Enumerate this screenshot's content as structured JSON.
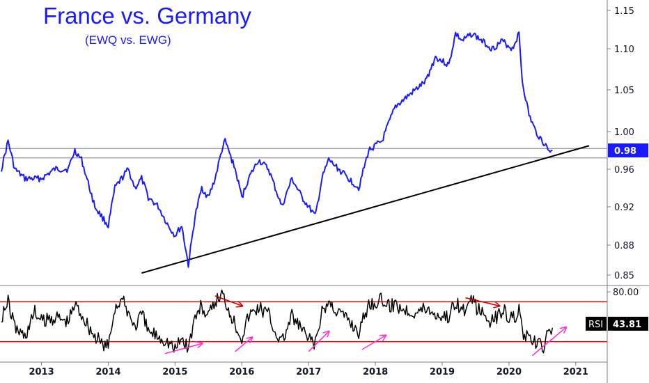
{
  "chart_data": [
    {
      "type": "line",
      "title": "France vs. Germany",
      "subtitle": "(EWQ vs. EWG)",
      "x_ticks": [
        "2013",
        "2014",
        "2015",
        "2016",
        "2017",
        "2018",
        "2019",
        "2020",
        "2021"
      ],
      "y_ticks": [
        "1.15",
        "1.10",
        "1.05",
        "1.00",
        "0.96",
        "0.92",
        "0.88",
        "0.85"
      ],
      "ylim": [
        0.84,
        1.16
      ],
      "last_value_label": "0.98",
      "series": [
        {
          "color": "#1a1aff",
          "x": [
            2012.4,
            2012.5,
            2012.6,
            2012.75,
            2012.9,
            2013.0,
            2013.2,
            2013.4,
            2013.5,
            2013.6,
            2013.8,
            2013.9,
            2014.0,
            2014.1,
            2014.2,
            2014.3,
            2014.4,
            2014.5,
            2014.6,
            2014.75,
            2014.9,
            2015.0,
            2015.1,
            2015.2,
            2015.3,
            2015.4,
            2015.5,
            2015.6,
            2015.7,
            2015.75,
            2015.9,
            2016.0,
            2016.1,
            2016.25,
            2016.4,
            2016.5,
            2016.6,
            2016.75,
            2016.9,
            2017.0,
            2017.1,
            2017.2,
            2017.3,
            2017.45,
            2017.6,
            2017.75,
            2017.9,
            2018.1,
            2018.2,
            2018.3,
            2018.45,
            2018.6,
            2018.75,
            2018.9,
            2019.1,
            2019.2,
            2019.3,
            2019.45,
            2019.6,
            2019.75,
            2019.9,
            2020.05,
            2020.15,
            2020.2,
            2020.3,
            2020.4,
            2020.5,
            2020.6,
            2020.65
          ],
          "y": [
            0.96,
            0.99,
            0.96,
            0.95,
            0.95,
            0.95,
            0.96,
            0.96,
            0.98,
            0.97,
            0.92,
            0.91,
            0.9,
            0.94,
            0.95,
            0.96,
            0.94,
            0.95,
            0.93,
            0.92,
            0.9,
            0.89,
            0.9,
            0.86,
            0.91,
            0.94,
            0.93,
            0.95,
            0.98,
            0.99,
            0.96,
            0.93,
            0.95,
            0.97,
            0.96,
            0.94,
            0.92,
            0.95,
            0.93,
            0.92,
            0.91,
            0.95,
            0.97,
            0.96,
            0.95,
            0.94,
            0.98,
            0.99,
            1.01,
            1.03,
            1.04,
            1.05,
            1.06,
            1.09,
            1.08,
            1.12,
            1.11,
            1.12,
            1.11,
            1.1,
            1.11,
            1.1,
            1.12,
            1.06,
            1.02,
            1.0,
            0.99,
            0.98,
            0.98
          ]
        }
      ],
      "reference_lines": [
        {
          "y": 0.982
        },
        {
          "y": 0.972
        }
      ],
      "trendline": {
        "x": [
          2014.5,
          2021.2
        ],
        "y": [
          0.852,
          0.985
        ]
      }
    },
    {
      "type": "line",
      "indicator": "RSI",
      "indicator_value": "43.81",
      "y_ticks": [
        "80.00"
      ],
      "ylim": [
        15,
        85
      ],
      "reference_lines": [
        {
          "y": 70
        },
        {
          "y": 30
        }
      ],
      "series": [
        {
          "color": "#000000",
          "x": [
            2012.4,
            2012.5,
            2012.6,
            2012.75,
            2012.9,
            2013.0,
            2013.2,
            2013.4,
            2013.5,
            2013.6,
            2013.8,
            2013.9,
            2014.0,
            2014.1,
            2014.2,
            2014.3,
            2014.4,
            2014.5,
            2014.6,
            2014.75,
            2014.9,
            2015.0,
            2015.1,
            2015.2,
            2015.3,
            2015.4,
            2015.5,
            2015.6,
            2015.7,
            2015.75,
            2015.9,
            2016.0,
            2016.1,
            2016.25,
            2016.4,
            2016.5,
            2016.6,
            2016.75,
            2016.9,
            2017.0,
            2017.1,
            2017.2,
            2017.3,
            2017.45,
            2017.6,
            2017.75,
            2017.9,
            2018.1,
            2018.2,
            2018.3,
            2018.45,
            2018.6,
            2018.75,
            2018.9,
            2019.1,
            2019.2,
            2019.3,
            2019.45,
            2019.6,
            2019.75,
            2019.9,
            2020.05,
            2020.15,
            2020.2,
            2020.3,
            2020.4,
            2020.5,
            2020.6,
            2020.65
          ],
          "y": [
            55,
            70,
            45,
            35,
            60,
            50,
            55,
            50,
            68,
            58,
            35,
            28,
            25,
            65,
            72,
            60,
            45,
            58,
            40,
            36,
            30,
            22,
            34,
            24,
            55,
            66,
            54,
            70,
            78,
            72,
            48,
            35,
            56,
            65,
            58,
            40,
            30,
            55,
            42,
            32,
            28,
            58,
            70,
            60,
            52,
            40,
            68,
            72,
            65,
            68,
            62,
            60,
            64,
            58,
            55,
            72,
            60,
            70,
            58,
            50,
            62,
            52,
            62,
            40,
            30,
            28,
            24,
            38,
            43.81
          ]
        }
      ],
      "annotations": [
        {
          "type": "arrow",
          "color": "#cc0000",
          "x": [
            2015.6,
            2016.0
          ],
          "y": [
            76,
            66
          ]
        },
        {
          "type": "arrow",
          "color": "#cc0000",
          "x": [
            2019.35,
            2019.85
          ],
          "y": [
            74,
            66
          ]
        },
        {
          "type": "arrow",
          "color": "#ff33cc",
          "x": [
            2014.85,
            2015.4
          ],
          "y": [
            18,
            28
          ]
        },
        {
          "type": "arrow",
          "color": "#ff33cc",
          "x": [
            2015.9,
            2016.15
          ],
          "y": [
            20,
            34
          ]
        },
        {
          "type": "arrow",
          "color": "#ff33cc",
          "x": [
            2017.0,
            2017.3
          ],
          "y": [
            20,
            40
          ]
        },
        {
          "type": "arrow",
          "color": "#ff33cc",
          "x": [
            2017.8,
            2018.15
          ],
          "y": [
            22,
            36
          ]
        },
        {
          "type": "arrow",
          "color": "#ff33cc",
          "x": [
            2020.35,
            2020.85
          ],
          "y": [
            16,
            44
          ]
        }
      ]
    }
  ]
}
